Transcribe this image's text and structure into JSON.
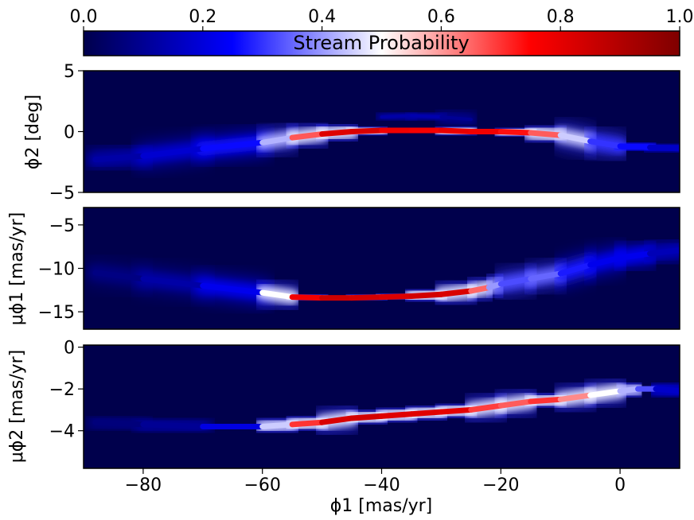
{
  "colorbar": {
    "label": "Stream Probability",
    "range": [
      0.0,
      1.0
    ],
    "ticks": [
      "0.0",
      "0.2",
      "0.4",
      "0.6",
      "0.8",
      "1.0"
    ],
    "colors": [
      "#00004c",
      "#0000ff",
      "#ffffff",
      "#ff0000",
      "#7f0000"
    ]
  },
  "chart_data": {
    "type": "heatmap",
    "xlabel": "ϕ1 [mas/yr]",
    "xlim": [
      -90,
      10
    ],
    "xticks": [
      -80,
      -60,
      -40,
      -20,
      0
    ],
    "x_tick_labels": [
      "−80",
      "−60",
      "−40",
      "−20",
      "0"
    ],
    "panels": [
      {
        "name": "phi2",
        "ylabel": "ϕ2 [deg]",
        "ylim": [
          -5,
          5
        ],
        "yticks": [
          5,
          0,
          -5
        ],
        "y_tick_labels": [
          "5",
          "0",
          "−5"
        ],
        "track": {
          "x": [
            -88,
            -80,
            -70,
            -60,
            -55,
            -50,
            -45,
            -40,
            -35,
            -30,
            -25,
            -20,
            -15,
            -10,
            -5,
            0,
            5,
            10
          ],
          "y": [
            -2.3,
            -2.0,
            -1.4,
            -0.9,
            -0.5,
            -0.2,
            0.0,
            0.1,
            0.1,
            0.1,
            0.0,
            0.0,
            -0.1,
            -0.3,
            -0.8,
            -1.2,
            -1.3,
            -1.4
          ],
          "probability": [
            0.1,
            0.15,
            0.22,
            0.3,
            0.55,
            0.78,
            0.85,
            0.8,
            0.75,
            0.78,
            0.8,
            0.75,
            0.72,
            0.6,
            0.3,
            0.3,
            0.22,
            0.12
          ]
        },
        "secondary": {
          "x": [
            -40,
            -35,
            -30,
            -25
          ],
          "y": [
            1.2,
            1.3,
            1.2,
            1.0
          ],
          "probability": [
            0.1,
            0.15,
            0.12,
            0.08
          ]
        }
      },
      {
        "name": "mu_phi1",
        "ylabel": "μϕ1 [mas/yr]",
        "ylim": [
          -17,
          -3
        ],
        "yticks": [
          -5,
          -10,
          -15
        ],
        "y_tick_labels": [
          "−5",
          "−10",
          "−15"
        ],
        "track": {
          "x": [
            -88,
            -80,
            -70,
            -60,
            -55,
            -50,
            -45,
            -40,
            -35,
            -30,
            -25,
            -22,
            -20,
            -15,
            -10,
            -5,
            0,
            5,
            10
          ],
          "y": [
            -10.5,
            -11.2,
            -12.0,
            -12.8,
            -13.3,
            -13.4,
            -13.4,
            -13.3,
            -13.2,
            -13.0,
            -12.6,
            -12.2,
            -11.8,
            -11.2,
            -10.6,
            -9.6,
            -8.8,
            -8.3,
            -7.9
          ],
          "probability": [
            0.05,
            0.1,
            0.15,
            0.3,
            0.7,
            0.85,
            0.85,
            0.82,
            0.82,
            0.85,
            0.8,
            0.5,
            0.3,
            0.35,
            0.35,
            0.2,
            0.25,
            0.2,
            0.1
          ]
        }
      },
      {
        "name": "mu_phi2",
        "ylabel": "μϕ2 [mas/yr]",
        "ylim": [
          -5.8,
          0.1
        ],
        "yticks": [
          0,
          -2,
          -4
        ],
        "y_tick_labels": [
          "0",
          "−2",
          "−4"
        ],
        "track": {
          "x": [
            -88,
            -80,
            -70,
            -60,
            -55,
            -50,
            -45,
            -40,
            -35,
            -30,
            -25,
            -20,
            -15,
            -10,
            -5,
            0,
            3,
            6,
            10
          ],
          "y": [
            -3.6,
            -3.7,
            -3.8,
            -3.8,
            -3.7,
            -3.6,
            -3.4,
            -3.3,
            -3.2,
            -3.1,
            -3.0,
            -2.8,
            -2.6,
            -2.5,
            -2.3,
            -2.1,
            -2.0,
            -2.0,
            -2.1
          ],
          "probability": [
            0.05,
            0.08,
            0.12,
            0.3,
            0.6,
            0.8,
            0.85,
            0.82,
            0.8,
            0.82,
            0.78,
            0.6,
            0.72,
            0.68,
            0.55,
            0.45,
            0.4,
            0.25,
            0.1
          ]
        }
      }
    ]
  }
}
